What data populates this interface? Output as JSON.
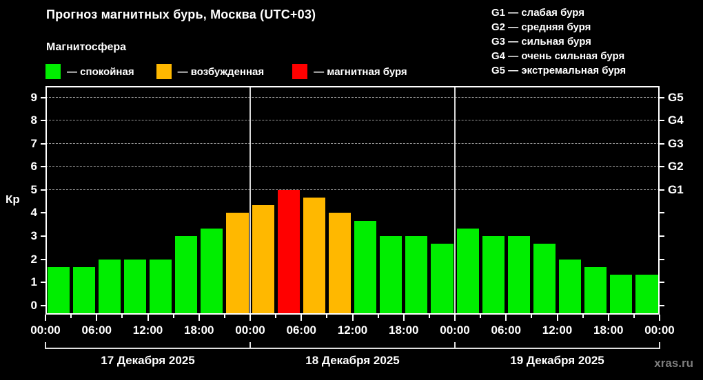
{
  "header": {
    "title": "Прогноз магнитных бурь, Москва (UTC+03)",
    "subtitle": "Магнитосфера",
    "watermark": "xras.ru"
  },
  "legend": {
    "items": [
      {
        "name": "quiet",
        "label": "— спокойная",
        "color": "#00EE00"
      },
      {
        "name": "excited",
        "label": "— возбужденная",
        "color": "#FFB800"
      },
      {
        "name": "storm",
        "label": "— магнитная буря",
        "color": "#FF0000"
      }
    ]
  },
  "g_legend": {
    "items": [
      "G1 — слабая буря",
      "G2 — средняя буря",
      "G3 — сильная буря",
      "G4 — очень сильная буря",
      "G5 — экстремальная буря"
    ]
  },
  "chart_data": {
    "type": "bar",
    "title": "Прогноз магнитных бурь, Москва (UTC+03)",
    "ylabel": "Кр",
    "ylim": [
      -0.4,
      9.5
    ],
    "yticks": [
      0,
      1,
      2,
      3,
      4,
      5,
      6,
      7,
      8,
      9
    ],
    "grid_levels": [
      5,
      6,
      7,
      8,
      9
    ],
    "right_axis_labels": [
      {
        "value": 5,
        "label": "G1"
      },
      {
        "value": 6,
        "label": "G2"
      },
      {
        "value": 7,
        "label": "G3"
      },
      {
        "value": 8,
        "label": "G4"
      },
      {
        "value": 9,
        "label": "G5"
      }
    ],
    "x_tick_labels": [
      "00:00",
      "06:00",
      "12:00",
      "18:00",
      "00:00",
      "06:00",
      "12:00",
      "18:00",
      "00:00",
      "06:00",
      "12:00",
      "18:00",
      "00:00"
    ],
    "hours_per_bar": 3,
    "days": [
      {
        "label": "17 Декабря 2025",
        "values": [
          1.67,
          1.67,
          2.0,
          2.0,
          2.0,
          3.0,
          3.33,
          4.0
        ]
      },
      {
        "label": "18 Декабря 2025",
        "values": [
          4.33,
          5.0,
          4.67,
          4.0,
          3.67,
          3.0,
          3.0,
          2.67
        ]
      },
      {
        "label": "19 Декабря 2025",
        "values": [
          3.33,
          3.0,
          3.0,
          2.67,
          2.0,
          1.67,
          1.33,
          1.33
        ]
      }
    ],
    "values": [
      1.67,
      1.67,
      2.0,
      2.0,
      2.0,
      3.0,
      3.33,
      4.0,
      4.33,
      5.0,
      4.67,
      4.0,
      3.67,
      3.0,
      3.0,
      2.67,
      3.33,
      3.0,
      3.0,
      2.67,
      2.0,
      1.67,
      1.33,
      1.33
    ],
    "states": [
      "quiet",
      "quiet",
      "quiet",
      "quiet",
      "quiet",
      "quiet",
      "quiet",
      "excited",
      "excited",
      "storm",
      "excited",
      "excited",
      "quiet",
      "quiet",
      "quiet",
      "quiet",
      "quiet",
      "quiet",
      "quiet",
      "quiet",
      "quiet",
      "quiet",
      "quiet",
      "quiet"
    ],
    "colors": {
      "quiet": "#00EE00",
      "excited": "#FFB800",
      "storm": "#FF0000"
    },
    "legend_position": "top-left",
    "grid": "dashed horizontal at G-levels only"
  }
}
